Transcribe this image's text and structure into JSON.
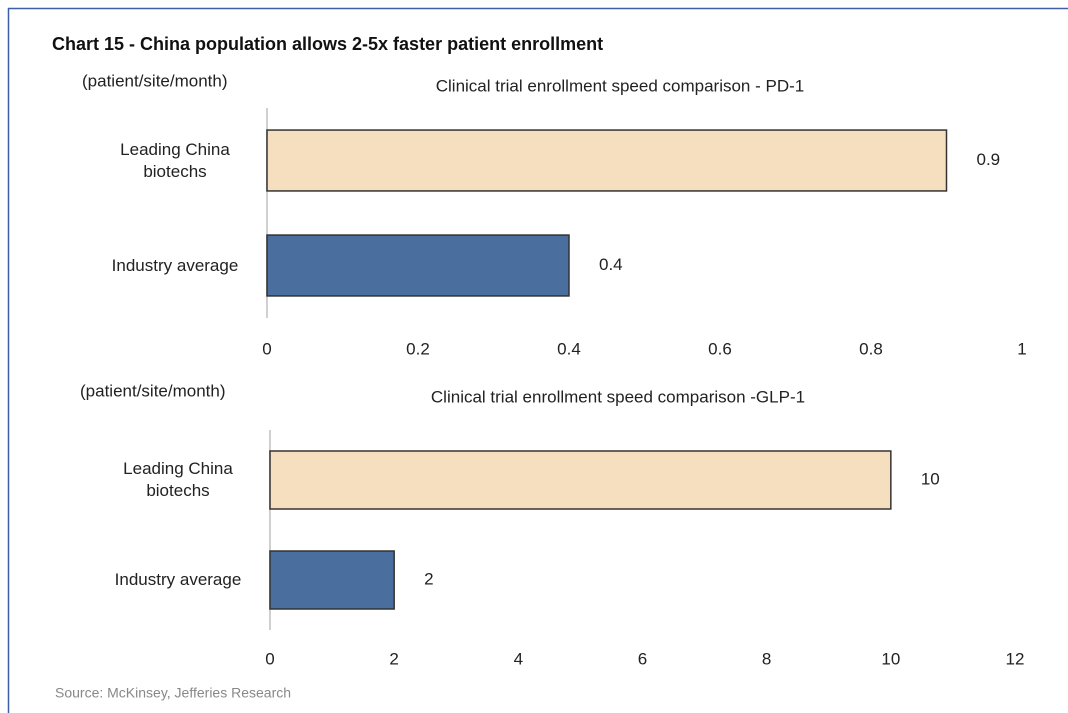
{
  "title": "Chart 15 - China population allows 2-5x faster patient enrollment",
  "source": "Source: McKinsey, Jefferies Research",
  "chart_data": [
    {
      "type": "hbar",
      "title": "Clinical trial enrollment speed comparison - PD-1",
      "ylabel": "(patient/site/month)",
      "categories": [
        "Leading China biotechs",
        "Industry average"
      ],
      "values": [
        0.9,
        0.4
      ],
      "colors": [
        "#f6dfbf",
        "#4a6f9e"
      ],
      "xlim": [
        0,
        1
      ],
      "xticks": [
        0,
        0.2,
        0.4,
        0.6,
        0.8,
        1
      ]
    },
    {
      "type": "hbar",
      "title": "Clinical trial enrollment speed comparison -GLP-1",
      "ylabel": "(patient/site/month)",
      "categories": [
        "Leading China biotechs",
        "Industry average"
      ],
      "values": [
        10,
        2
      ],
      "colors": [
        "#f6dfbf",
        "#4a6f9e"
      ],
      "xlim": [
        0,
        12
      ],
      "xticks": [
        0,
        2,
        4,
        6,
        8,
        10,
        12
      ]
    }
  ]
}
